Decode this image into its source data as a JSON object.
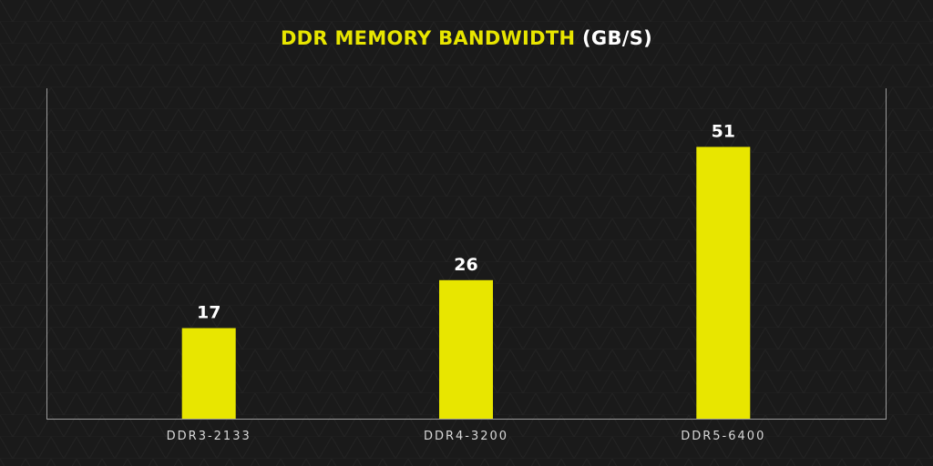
{
  "chart_data": {
    "type": "bar",
    "title": "DDR MEMORY BANDWIDTH",
    "title_unit": "(GB/S)",
    "categories": [
      "DDR3-2133",
      "DDR4-3200",
      "DDR5-6400"
    ],
    "values": [
      17,
      26,
      51
    ],
    "value_labels": [
      "17",
      "26",
      "51"
    ],
    "ylim": [
      0,
      62
    ],
    "xlabel": "",
    "ylabel": "",
    "grid": false,
    "legend": "none",
    "colors": {
      "bar": "#e8e600",
      "title": "#e8e600",
      "title_unit": "#ffffff",
      "background": "#1a1a1a",
      "axis": "#9a9a9a",
      "value_label": "#ffffff",
      "tick_label": "#d8d8d8"
    }
  }
}
